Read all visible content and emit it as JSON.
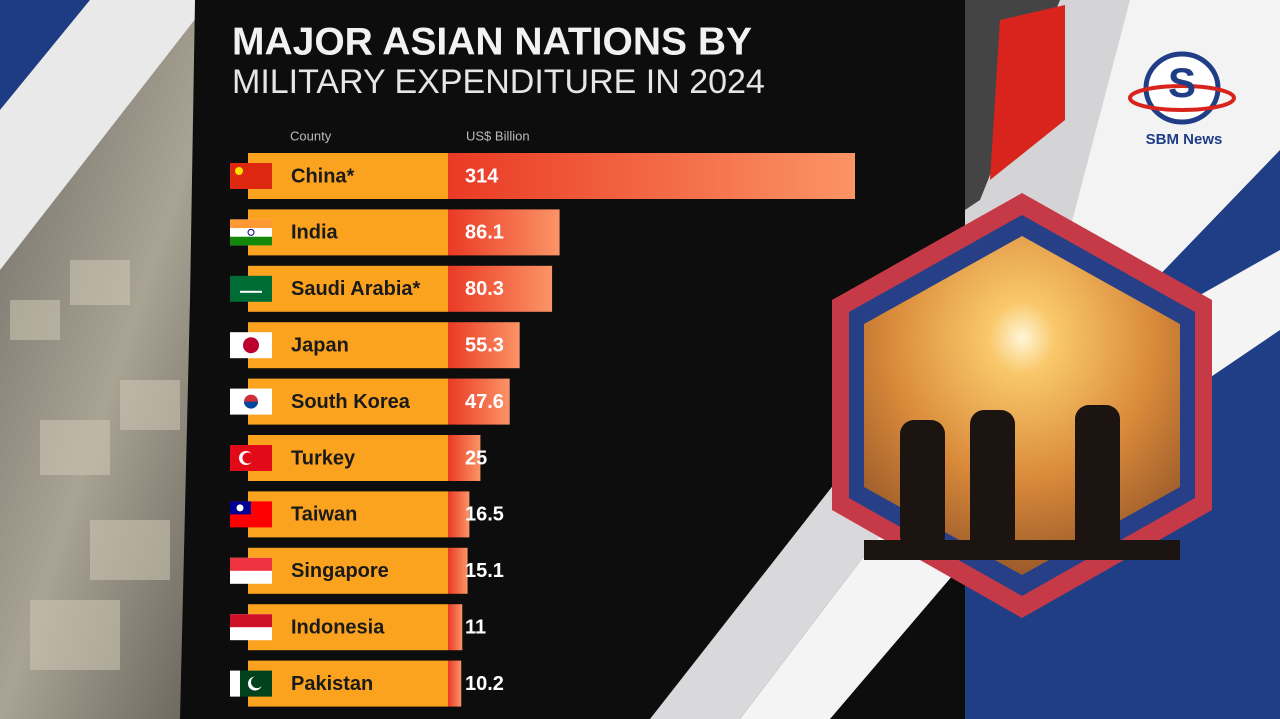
{
  "chart_data": {
    "type": "bar",
    "title": "MAJOR ASIAN NATIONS BY",
    "subtitle": "MILITARY EXPENDITURE IN 2024",
    "category_header": "County",
    "value_header": "US$ Billion",
    "categories": [
      "China*",
      "India",
      "Saudi Arabia*",
      "Japan",
      "South Korea",
      "Turkey",
      "Taiwan",
      "Singapore",
      "Indonesia",
      "Pakistan"
    ],
    "values": [
      314,
      86.1,
      80.3,
      55.3,
      47.6,
      25,
      16.5,
      15.1,
      11,
      10.2
    ],
    "label_color": "#fba31f",
    "bar_colors": [
      "#ea3a26",
      "#fb9466"
    ]
  },
  "logo": {
    "text": "SBM News"
  }
}
